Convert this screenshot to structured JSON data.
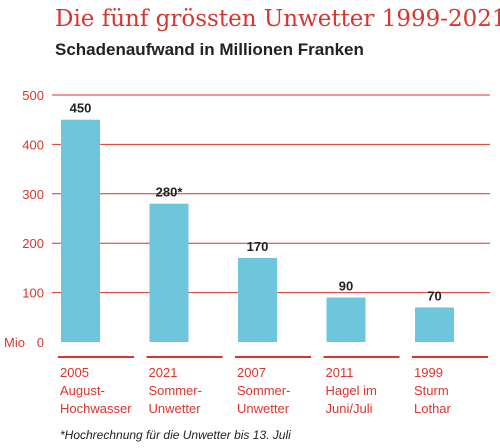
{
  "title": "Die fünf grössten Unwetter 1999-2021",
  "subtitle": "Schadenaufwand in Millionen Franken",
  "footnote": "*Hochrechnung für die Unwetter bis 13. Juli",
  "colors": {
    "accent": "#d9352f",
    "bar": "#6ec6dc",
    "text": "#222222"
  },
  "chart_data": {
    "type": "bar",
    "title": "Die fünf grössten Unwetter 1999-2021",
    "subtitle": "Schadenaufwand in Millionen Franken",
    "ylabel": "Mio",
    "ylim": [
      0,
      500
    ],
    "yticks": [
      "0",
      "100",
      "200",
      "300",
      "400",
      "500"
    ],
    "grid": true,
    "categories": [
      [
        "2005",
        "August-",
        "Hochwasser"
      ],
      [
        "2021",
        "Sommer-",
        "Unwetter"
      ],
      [
        "2007",
        "Sommer-",
        "Unwetter"
      ],
      [
        "2011",
        "Hagel im",
        "Juni/Juli"
      ],
      [
        "1999",
        "Sturm",
        "Lothar"
      ]
    ],
    "values": [
      450,
      280,
      170,
      90,
      70
    ],
    "value_labels": [
      "450",
      "280*",
      "170",
      "90",
      "70"
    ]
  }
}
